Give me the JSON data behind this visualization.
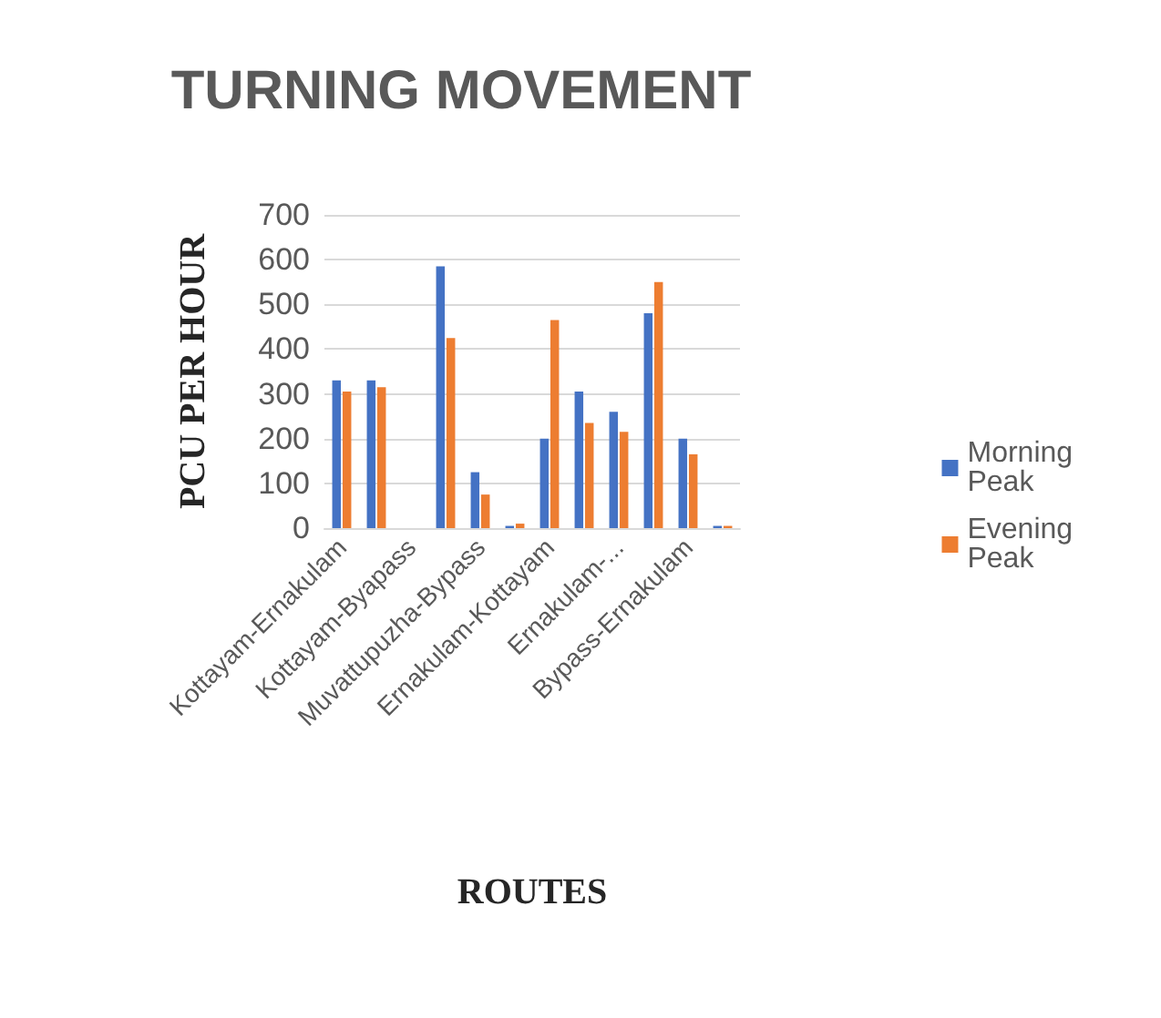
{
  "chart_data": {
    "type": "bar",
    "title": "TURNING MOVEMENT",
    "xlabel": "ROUTES",
    "ylabel": "PCU PER HOUR",
    "categories": [
      "Kottayam-Ernakulam",
      null,
      "Kottayam-Byapass",
      null,
      "Muvattupuzha-Bypass",
      null,
      "Ernakulam-Kottayam",
      null,
      "Ernakulam-...",
      null,
      "Bypass-Ernakulam",
      null
    ],
    "series": [
      {
        "name": "Morning Peak",
        "color": "#4472c4",
        "values": [
          330,
          330,
          0,
          585,
          125,
          5,
          200,
          305,
          260,
          480,
          200,
          5
        ]
      },
      {
        "name": "Evening Peak",
        "color": "#ed7d31",
        "values": [
          305,
          315,
          0,
          425,
          75,
          10,
          465,
          235,
          215,
          550,
          165,
          5
        ]
      }
    ],
    "ylim": [
      0,
      700
    ],
    "yticks": [
      0,
      100,
      200,
      300,
      400,
      500,
      600,
      700
    ],
    "grid": "y",
    "legend": "right"
  }
}
